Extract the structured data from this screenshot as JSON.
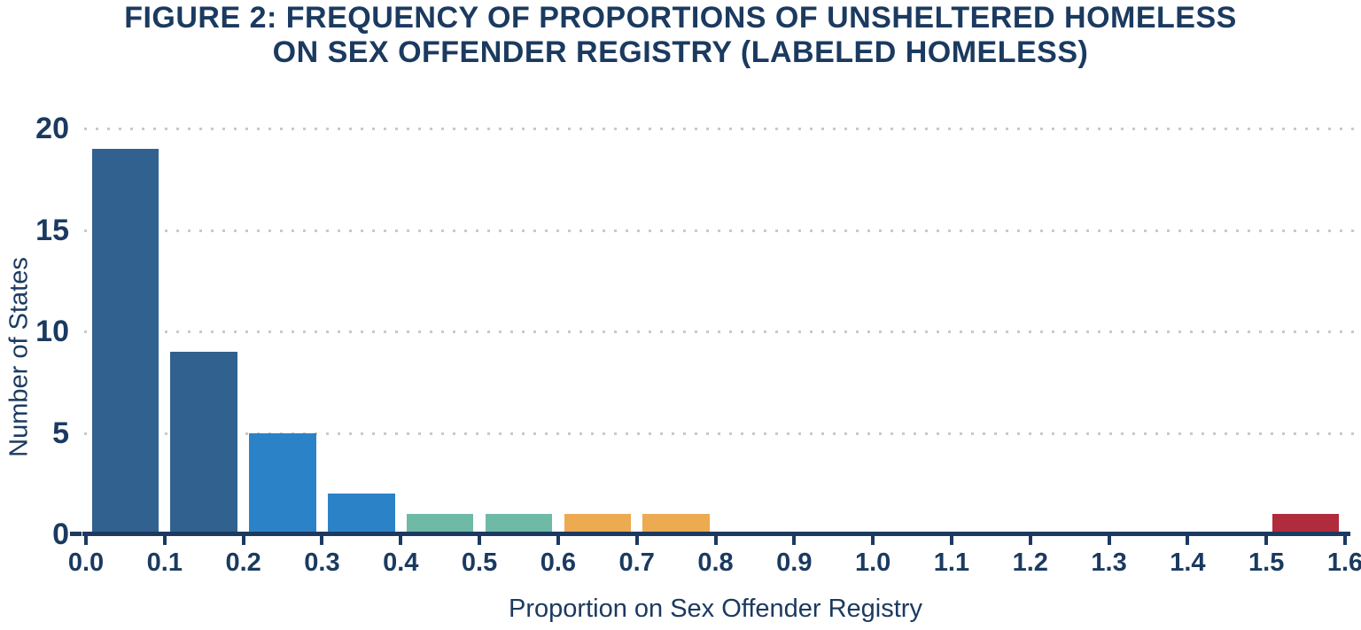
{
  "title": {
    "line1": "FIGURE 2: FREQUENCY OF PROPORTIONS OF UNSHELTERED HOMELESS",
    "line2": "ON SEX OFFENDER REGISTRY (LABELED HOMELESS)"
  },
  "colors": {
    "text_navy": "#1B3A60",
    "axis_navy": "#1C3A61",
    "gridline_gray": "#C9C9C9",
    "bar_dark_blue": "#31618E",
    "bar_bright_blue": "#2C82C7",
    "bar_teal": "#6FB9A7",
    "bar_orange": "#ECAA51",
    "bar_red": "#B02B3B"
  },
  "chart_data": {
    "type": "bar",
    "subtype": "histogram",
    "title": "FIGURE 2: FREQUENCY OF PROPORTIONS OF UNSHELTERED HOMELESS ON SEX OFFENDER REGISTRY (LABELED HOMELESS)",
    "xlabel": "Proportion on Sex Offender Registry",
    "ylabel": "Number of States",
    "xlim": [
      0.0,
      1.6
    ],
    "ylim": [
      0,
      20
    ],
    "bin_width": 0.1,
    "grid": "horizontal dotted gridlines at y ticks, no vertical grid",
    "legend": "none",
    "x_tick_labels": [
      "0.0",
      "0.1",
      "0.2",
      "0.3",
      "0.4",
      "0.5",
      "0.6",
      "0.7",
      "0.8",
      "0.9",
      "1.0",
      "1.1",
      "1.2",
      "1.3",
      "1.4",
      "1.5",
      "1.6"
    ],
    "y_ticks": [
      0,
      5,
      10,
      15,
      20
    ],
    "bins": [
      {
        "start": 0.0,
        "end": 0.1,
        "count": 19,
        "color": "#31618E"
      },
      {
        "start": 0.1,
        "end": 0.2,
        "count": 9,
        "color": "#31618E"
      },
      {
        "start": 0.2,
        "end": 0.3,
        "count": 5,
        "color": "#2C82C7"
      },
      {
        "start": 0.3,
        "end": 0.4,
        "count": 2,
        "color": "#2C82C7"
      },
      {
        "start": 0.4,
        "end": 0.5,
        "count": 1,
        "color": "#6FB9A7"
      },
      {
        "start": 0.5,
        "end": 0.6,
        "count": 1,
        "color": "#6FB9A7"
      },
      {
        "start": 0.6,
        "end": 0.7,
        "count": 1,
        "color": "#ECAA51"
      },
      {
        "start": 0.7,
        "end": 0.8,
        "count": 1,
        "color": "#ECAA51"
      },
      {
        "start": 0.8,
        "end": 0.9,
        "count": 0,
        "color": null
      },
      {
        "start": 0.9,
        "end": 1.0,
        "count": 0,
        "color": null
      },
      {
        "start": 1.0,
        "end": 1.1,
        "count": 0,
        "color": null
      },
      {
        "start": 1.1,
        "end": 1.2,
        "count": 0,
        "color": null
      },
      {
        "start": 1.2,
        "end": 1.3,
        "count": 0,
        "color": null
      },
      {
        "start": 1.3,
        "end": 1.4,
        "count": 0,
        "color": null
      },
      {
        "start": 1.4,
        "end": 1.5,
        "count": 0,
        "color": null
      },
      {
        "start": 1.5,
        "end": 1.6,
        "count": 1,
        "color": "#B02B3B"
      }
    ]
  }
}
